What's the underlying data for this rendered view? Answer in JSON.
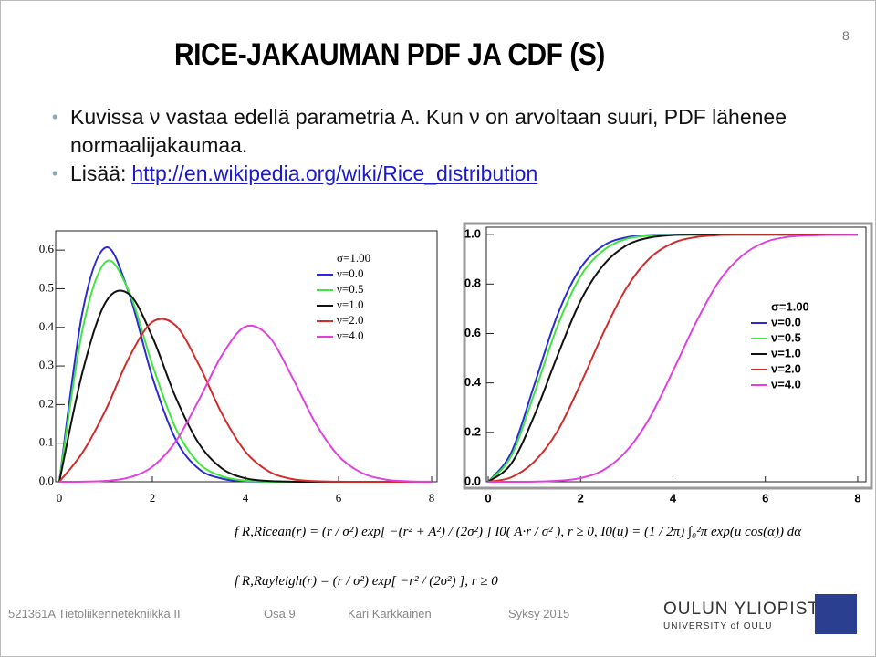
{
  "slide": {
    "title": "RICE-JAKAUMAN PDF JA CDF (S)",
    "page_number": "8",
    "bullets": [
      "Kuvissa ν vastaa edellä parametria A. Kun ν on arvoltaan suuri, PDF lähenee normaalijakaumaa.",
      "Lisää:"
    ],
    "link": "http://en.wikipedia.org/wiki/Rice_distribution",
    "formulas": [
      "f R,Ricean(r) = (r / σ²) exp[ −(r² + A²) / (2σ²) ] I0( A·r / σ² ),  r ≥ 0,  I0(u) = (1 / 2π) ∫₀²π exp(u cos(α)) dα",
      "f R,Rayleigh(r) = (r / σ²) exp[ −r² / (2σ²) ],  r ≥ 0"
    ]
  },
  "footer": {
    "course": "521361A Tietoliikennetekniikka II",
    "part": "Osa 9",
    "author": "Kari Kärkkäinen",
    "term": "Syksy 2015",
    "logo": "OULUN YLIOPISTO",
    "logo_sub": "UNIVERSITY of OULU"
  },
  "chart_data": [
    {
      "type": "line",
      "legend_title": "σ=1.00",
      "x": [
        0,
        0.5,
        1,
        1.5,
        2,
        2.5,
        3,
        3.5,
        4,
        4.5,
        5,
        5.5,
        6,
        6.5,
        7,
        7.5,
        8
      ],
      "xlim": [
        0,
        8
      ],
      "ylim": [
        0,
        0.65
      ],
      "xticks": [
        0,
        2,
        4,
        6,
        8
      ],
      "yticks": [
        {
          "value": 0,
          "label": "0.0"
        },
        0.1,
        0.2,
        0.3,
        0.4,
        0.5,
        0.6
      ],
      "series": [
        {
          "name": "ν=0.0",
          "color": "#2b2bd6",
          "values": [
            0,
            0.441,
            0.607,
            0.487,
            0.271,
            0.11,
            0.033,
            0.008,
            0.0013,
            0.0002,
            0,
            0,
            0,
            0,
            0,
            0,
            0
          ]
        },
        {
          "name": "ν=0.5",
          "color": "#3ee63e",
          "values": [
            0,
            0.395,
            0.57,
            0.492,
            0.303,
            0.139,
            0.048,
            0.014,
            0.003,
            0.0004,
            0,
            0,
            0,
            0,
            0,
            0,
            0
          ]
        },
        {
          "name": "ν=1.0",
          "color": "#111111",
          "values": [
            0,
            0.285,
            0.466,
            0.486,
            0.375,
            0.219,
            0.099,
            0.034,
            0.009,
            0.002,
            0.0003,
            0,
            0,
            0,
            0,
            0,
            0
          ]
        },
        {
          "name": "ν=2.0",
          "color": "#d22b2b",
          "values": [
            0,
            0.076,
            0.187,
            0.322,
            0.414,
            0.405,
            0.303,
            0.175,
            0.078,
            0.027,
            0.007,
            0.0015,
            0.0002,
            0,
            0,
            0,
            0
          ]
        },
        {
          "name": "ν=4.0",
          "color": "#e040e0",
          "values": [
            0,
            0.0003,
            0.0023,
            0.011,
            0.039,
            0.104,
            0.212,
            0.329,
            0.402,
            0.377,
            0.272,
            0.153,
            0.067,
            0.023,
            0.006,
            0.0012,
            0.0002
          ]
        }
      ]
    },
    {
      "type": "line",
      "legend_title": "σ=1.00",
      "x": [
        0,
        0.5,
        1,
        1.5,
        2,
        2.5,
        3,
        3.5,
        4,
        4.5,
        5,
        5.5,
        6,
        6.5,
        7,
        7.5,
        8
      ],
      "xlim": [
        0,
        8.1
      ],
      "ylim": [
        0,
        1.03
      ],
      "xticks": [
        0,
        2,
        4,
        6,
        8
      ],
      "yticks": [
        {
          "value": 0,
          "label": "0.0"
        },
        0.2,
        0.4,
        0.6,
        0.8,
        {
          "value": 1,
          "label": "1.0"
        }
      ],
      "series": [
        {
          "name": "ν=0.0",
          "color": "#2b2bd6",
          "values": [
            0,
            0.118,
            0.393,
            0.675,
            0.865,
            0.956,
            0.989,
            0.998,
            1,
            1,
            1,
            1,
            1,
            1,
            1,
            1,
            1
          ]
        },
        {
          "name": "ν=0.5",
          "color": "#3ee63e",
          "values": [
            0,
            0.104,
            0.358,
            0.63,
            0.832,
            0.937,
            0.983,
            0.996,
            0.999,
            1,
            1,
            1,
            1,
            1,
            1,
            1,
            1
          ]
        },
        {
          "name": "ν=1.0",
          "color": "#111111",
          "values": [
            0,
            0.073,
            0.268,
            0.51,
            0.732,
            0.878,
            0.957,
            0.988,
            0.998,
            1,
            1,
            1,
            1,
            1,
            1,
            1,
            1
          ]
        },
        {
          "name": "ν=2.0",
          "color": "#d22b2b",
          "values": [
            0,
            0.018,
            0.082,
            0.205,
            0.396,
            0.605,
            0.786,
            0.905,
            0.966,
            0.99,
            0.998,
            1,
            1,
            1,
            1,
            1,
            1
          ]
        },
        {
          "name": "ν=4.0",
          "color": "#e040e0",
          "values": [
            0,
            0,
            0.0005,
            0.004,
            0.015,
            0.048,
            0.126,
            0.26,
            0.448,
            0.645,
            0.812,
            0.915,
            0.97,
            0.991,
            0.997,
            0.999,
            1
          ]
        }
      ]
    }
  ]
}
